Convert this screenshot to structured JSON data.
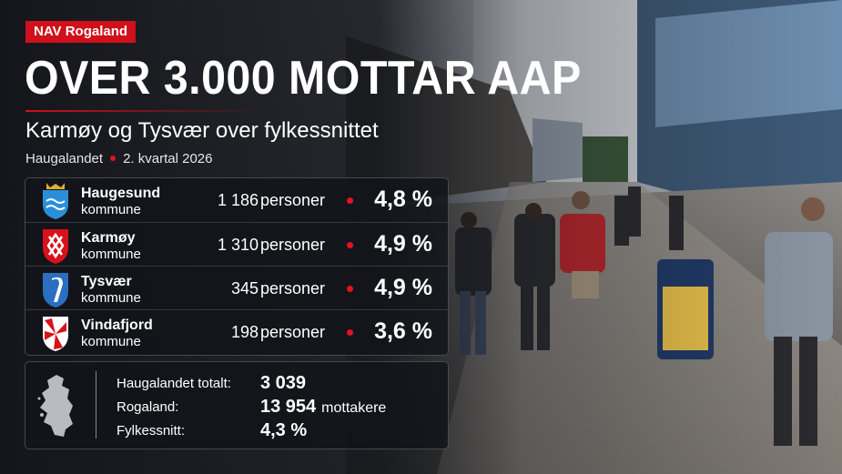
{
  "header": {
    "badge": "NAV Rogaland",
    "title": "OVER 3.000 MOTTAR AAP",
    "subtitle": "Karmøy og Tysvær over fylkessnittet",
    "region": "Haugalandet",
    "period": "2. kvartal 2026"
  },
  "table": {
    "rows": [
      {
        "name": "Haugesund",
        "type": "kommune",
        "count": "1 186",
        "unit": "personer",
        "percent": "4,8 %"
      },
      {
        "name": "Karmøy",
        "type": "kommune",
        "count": "1 310",
        "unit": "personer",
        "percent": "4,9 %"
      },
      {
        "name": "Tysvær",
        "type": "kommune",
        "count": "345",
        "unit": "personer",
        "percent": "4,9 %"
      },
      {
        "name": "Vindafjord",
        "type": "kommune",
        "count": "198",
        "unit": "personer",
        "percent": "3,6 %"
      }
    ]
  },
  "summary": {
    "rows": [
      {
        "label": "Haugalandet totalt:",
        "value": "3 039"
      },
      {
        "label": "Rogaland:",
        "value": "13 954",
        "unit": "mottakere"
      },
      {
        "label": "Fylkessnitt:",
        "value": "4,3 %"
      }
    ]
  }
}
